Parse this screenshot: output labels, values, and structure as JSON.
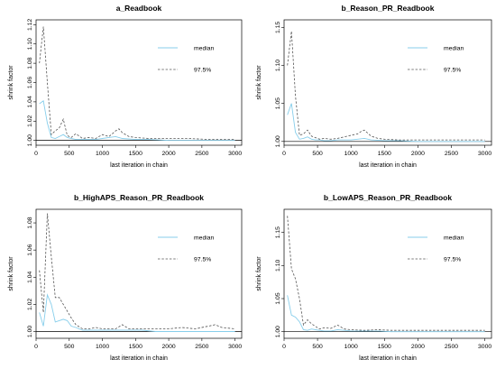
{
  "colors": {
    "median": "#87ceeb",
    "q975": "#555555",
    "axis": "#000000",
    "refline": "#000000"
  },
  "chart_data": [
    {
      "type": "line",
      "title": "a_Readbook",
      "xlabel": "last iteration in chain",
      "ylabel": "shrink factor",
      "xlim": [
        0,
        3100
      ],
      "ylim": [
        0.995,
        1.125
      ],
      "xticks": [
        0,
        500,
        1000,
        1500,
        2000,
        2500,
        3000
      ],
      "yticks": [
        "1.00",
        "1.02",
        "1.04",
        "1.06",
        "1.08",
        "1.10",
        "1.12"
      ],
      "legend": [
        "median",
        "97.5%"
      ],
      "series": [
        {
          "name": "median",
          "x": [
            50,
            110,
            170,
            230,
            290,
            350,
            410,
            470,
            530,
            600,
            700,
            800,
            900,
            1000,
            1100,
            1200,
            1300,
            1500,
            1700,
            2000,
            2300,
            2600,
            3000
          ],
          "values": [
            1.038,
            1.041,
            1.018,
            1.003,
            1.002,
            1.004,
            1.006,
            1.003,
            1.002,
            1.001,
            1.001,
            1.001,
            1.001,
            1.002,
            1.003,
            1.004,
            1.002,
            1.001,
            1.001,
            1.0,
            1.0,
            1.0,
            1.0
          ]
        },
        {
          "name": "97.5%",
          "x": [
            50,
            110,
            170,
            230,
            290,
            350,
            410,
            470,
            530,
            600,
            700,
            800,
            900,
            1000,
            1100,
            1200,
            1250,
            1300,
            1400,
            1500,
            1700,
            2000,
            2300,
            2600,
            3000
          ],
          "values": [
            1.08,
            1.118,
            1.06,
            1.006,
            1.01,
            1.013,
            1.022,
            1.005,
            1.003,
            1.007,
            1.002,
            1.003,
            1.002,
            1.006,
            1.004,
            1.01,
            1.012,
            1.008,
            1.004,
            1.003,
            1.002,
            1.002,
            1.002,
            1.001,
            1.001
          ]
        }
      ]
    },
    {
      "type": "line",
      "title": "b_Reason_PR_Readbook",
      "xlabel": "last iteration in chain",
      "ylabel": "shrink factor",
      "xlim": [
        0,
        3100
      ],
      "ylim": [
        0.995,
        1.16
      ],
      "xticks": [
        0,
        500,
        1000,
        1500,
        2000,
        2500,
        3000
      ],
      "yticks": [
        "1.00",
        "1.05",
        "1.10",
        "1.15"
      ],
      "legend": [
        "median",
        "97.5%"
      ],
      "series": [
        {
          "name": "median",
          "x": [
            50,
            110,
            170,
            230,
            290,
            350,
            410,
            470,
            530,
            600,
            700,
            800,
            900,
            1000,
            1100,
            1200,
            1300,
            1500,
            1700,
            2000,
            2300,
            2600,
            3000
          ],
          "values": [
            1.035,
            1.05,
            1.012,
            1.003,
            1.004,
            1.006,
            1.003,
            1.002,
            1.002,
            1.001,
            1.001,
            1.002,
            1.002,
            1.002,
            1.003,
            1.004,
            1.002,
            1.001,
            1.001,
            1.0,
            1.0,
            1.0,
            1.0
          ]
        },
        {
          "name": "97.5%",
          "x": [
            50,
            110,
            170,
            230,
            290,
            350,
            410,
            470,
            530,
            600,
            700,
            800,
            900,
            1000,
            1100,
            1150,
            1200,
            1250,
            1300,
            1400,
            1500,
            1700,
            2000,
            2300,
            2600,
            3000
          ],
          "values": [
            1.1,
            1.145,
            1.06,
            1.008,
            1.01,
            1.015,
            1.007,
            1.005,
            1.003,
            1.004,
            1.003,
            1.004,
            1.006,
            1.008,
            1.01,
            1.013,
            1.015,
            1.011,
            1.007,
            1.004,
            1.003,
            1.002,
            1.002,
            1.002,
            1.002,
            1.002
          ]
        }
      ]
    },
    {
      "type": "line",
      "title": "b_HighAPS_Reason_PR_Readbook",
      "xlabel": "last iteration in chain",
      "ylabel": "shrink factor",
      "xlim": [
        0,
        3100
      ],
      "ylim": [
        0.995,
        1.09
      ],
      "xticks": [
        0,
        500,
        1000,
        1500,
        2000,
        2500,
        3000
      ],
      "yticks": [
        "1.00",
        "1.02",
        "1.04",
        "1.06",
        "1.08"
      ],
      "legend": [
        "median",
        "97.5%"
      ],
      "series": [
        {
          "name": "median",
          "x": [
            50,
            110,
            170,
            230,
            290,
            350,
            410,
            470,
            530,
            600,
            700,
            800,
            900,
            1000,
            1200,
            1400,
            1600,
            1800,
            2000,
            2300,
            2600,
            3000
          ],
          "values": [
            1.014,
            1.004,
            1.027,
            1.02,
            1.007,
            1.008,
            1.009,
            1.008,
            1.004,
            1.003,
            1.001,
            1.001,
            1.001,
            1.001,
            1.001,
            1.001,
            1.001,
            1.0,
            1.0,
            1.0,
            1.0,
            1.0
          ]
        },
        {
          "name": "97.5%",
          "x": [
            50,
            110,
            170,
            230,
            290,
            350,
            410,
            470,
            530,
            600,
            700,
            800,
            900,
            1000,
            1200,
            1300,
            1400,
            1500,
            1700,
            2000,
            2200,
            2400,
            2600,
            2700,
            2800,
            3000
          ],
          "values": [
            1.045,
            1.014,
            1.087,
            1.055,
            1.025,
            1.025,
            1.02,
            1.015,
            1.01,
            1.005,
            1.002,
            1.002,
            1.003,
            1.002,
            1.002,
            1.005,
            1.002,
            1.002,
            1.002,
            1.002,
            1.003,
            1.002,
            1.004,
            1.005,
            1.003,
            1.002
          ]
        }
      ]
    },
    {
      "type": "line",
      "title": "b_LowAPS_Reason_PR_Readbook",
      "xlabel": "last iteration in chain",
      "ylabel": "shrink factor",
      "xlim": [
        0,
        3100
      ],
      "ylim": [
        0.99,
        1.185
      ],
      "xticks": [
        0,
        500,
        1000,
        1500,
        2000,
        2500,
        3000
      ],
      "yticks": [
        "1.00",
        "1.05",
        "1.10",
        "1.15"
      ],
      "legend": [
        "median",
        "97.5%"
      ],
      "series": [
        {
          "name": "median",
          "x": [
            50,
            110,
            170,
            230,
            290,
            350,
            410,
            470,
            530,
            600,
            700,
            800,
            900,
            1000,
            1200,
            1400,
            1600,
            2000,
            2300,
            2600,
            3000
          ],
          "values": [
            1.055,
            1.025,
            1.022,
            1.015,
            1.003,
            1.002,
            1.004,
            1.003,
            1.002,
            1.001,
            1.001,
            1.003,
            1.002,
            1.001,
            1.001,
            1.001,
            1.0,
            1.0,
            1.0,
            1.0,
            1.0
          ]
        },
        {
          "name": "97.5%",
          "x": [
            50,
            110,
            170,
            230,
            290,
            350,
            410,
            470,
            530,
            600,
            700,
            800,
            900,
            1000,
            1200,
            1400,
            1600,
            2000,
            2300,
            2600,
            3000
          ],
          "values": [
            1.175,
            1.095,
            1.08,
            1.05,
            1.01,
            1.018,
            1.012,
            1.008,
            1.004,
            1.006,
            1.005,
            1.01,
            1.004,
            1.003,
            1.002,
            1.003,
            1.002,
            1.002,
            1.002,
            1.002,
            1.002
          ]
        }
      ]
    }
  ]
}
